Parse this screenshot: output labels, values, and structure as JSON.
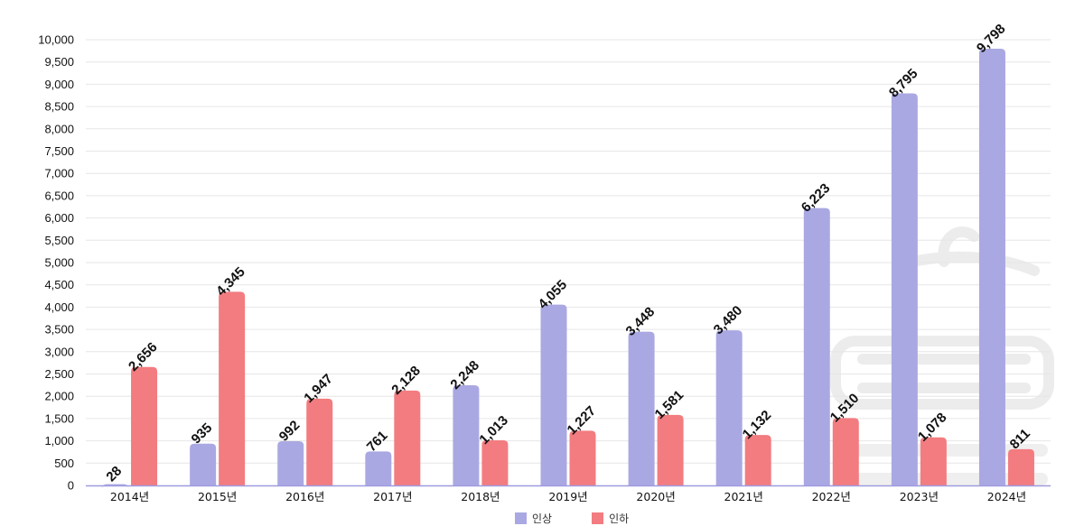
{
  "chart_data": {
    "type": "bar",
    "categories": [
      "2014년",
      "2015년",
      "2016년",
      "2017년",
      "2018년",
      "2019년",
      "2020년",
      "2021년",
      "2022년",
      "2023년",
      "2024년"
    ],
    "series": [
      {
        "name": "인상",
        "color": "#aaa8e2",
        "values": [
          28,
          935,
          992,
          761,
          2248,
          4055,
          3448,
          3480,
          6223,
          8795,
          9798
        ],
        "labels": [
          "28",
          "935",
          "992",
          "761",
          "2,248",
          "4,055",
          "3,448",
          "3,480",
          "6,223",
          "8,795",
          "9,798"
        ]
      },
      {
        "name": "인하",
        "color": "#f27c80",
        "values": [
          2656,
          4345,
          1947,
          2128,
          1013,
          1227,
          1581,
          1132,
          1510,
          1078,
          811
        ],
        "labels": [
          "2,656",
          "4,345",
          "1,947",
          "2,128",
          "1,013",
          "1,227",
          "1,581",
          "1,132",
          "1,510",
          "1,078",
          "811"
        ]
      }
    ],
    "ylim": [
      0,
      10000
    ],
    "yticks": [
      0,
      500,
      1000,
      1500,
      2000,
      2500,
      3000,
      3500,
      4000,
      4500,
      5000,
      5500,
      6000,
      6500,
      7000,
      7500,
      8000,
      8500,
      9000,
      9500,
      10000
    ],
    "ytick_labels": [
      "0",
      "500",
      "1,000",
      "1,500",
      "2,000",
      "2,500",
      "3,000",
      "3,500",
      "4,000",
      "4,500",
      "5,000",
      "5,500",
      "6,000",
      "6,500",
      "7,000",
      "7,500",
      "8,000",
      "8,500",
      "9,000",
      "9,500",
      "10,000"
    ],
    "grid": true,
    "legend_position": "bottom"
  }
}
